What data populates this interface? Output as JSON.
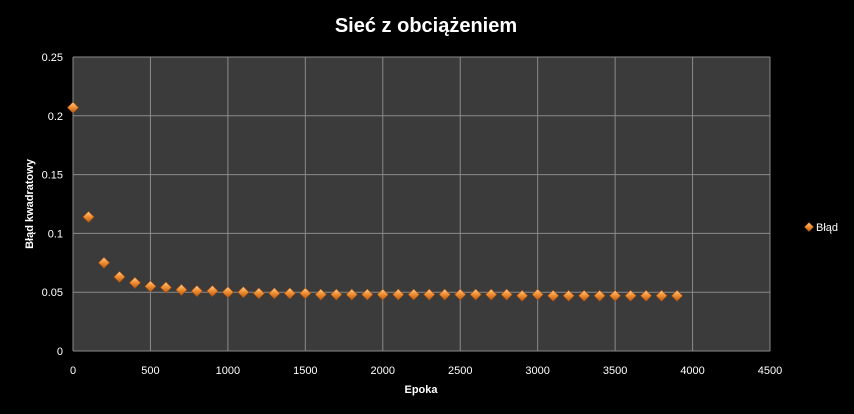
{
  "chart_data": {
    "type": "scatter",
    "title": "Sieć z obciążeniem",
    "xlabel": "Epoka",
    "ylabel": "Błąd kwadratowy",
    "xlim": [
      0,
      4500
    ],
    "ylim": [
      0,
      0.25
    ],
    "x_ticks": [
      0,
      500,
      1000,
      1500,
      2000,
      2500,
      3000,
      3500,
      4000,
      4500
    ],
    "y_ticks": [
      0,
      0.05,
      0.1,
      0.15,
      0.2,
      0.25
    ],
    "y_tick_labels": [
      "0",
      "0.05",
      "0.1",
      "0.15",
      "0.2",
      "0.25"
    ],
    "grid": true,
    "legend_position": "right",
    "series": [
      {
        "name": "Błąd",
        "color": "#f0852a",
        "marker": "diamond",
        "x": [
          0,
          100,
          200,
          300,
          400,
          500,
          600,
          700,
          800,
          900,
          1000,
          1100,
          1200,
          1300,
          1400,
          1500,
          1600,
          1700,
          1800,
          1900,
          2000,
          2100,
          2200,
          2300,
          2400,
          2500,
          2600,
          2700,
          2800,
          2900,
          3000,
          3100,
          3200,
          3300,
          3400,
          3500,
          3600,
          3700,
          3800,
          3900
        ],
        "y": [
          0.207,
          0.114,
          0.075,
          0.063,
          0.058,
          0.055,
          0.054,
          0.052,
          0.051,
          0.051,
          0.05,
          0.05,
          0.049,
          0.049,
          0.049,
          0.049,
          0.048,
          0.048,
          0.048,
          0.048,
          0.048,
          0.048,
          0.048,
          0.048,
          0.048,
          0.048,
          0.048,
          0.048,
          0.048,
          0.047,
          0.048,
          0.047,
          0.047,
          0.047,
          0.047,
          0.047,
          0.047,
          0.047,
          0.047,
          0.047
        ]
      }
    ]
  }
}
